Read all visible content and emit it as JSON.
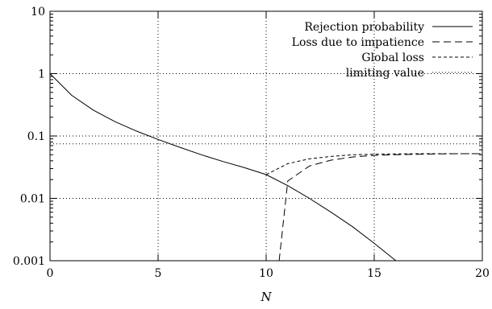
{
  "chart_data": {
    "type": "line",
    "title": "",
    "xlabel": "N",
    "ylabel": "",
    "xlim": [
      0,
      20
    ],
    "ylim": [
      0.001,
      10
    ],
    "y_scale": "log",
    "grid": true,
    "legend_position": "top-right",
    "x_ticks": [
      0,
      5,
      10,
      15,
      20
    ],
    "x_tick_labels": [
      "0",
      "5",
      "10",
      "15",
      "20"
    ],
    "y_ticks": [
      0.001,
      0.01,
      0.1,
      1,
      10
    ],
    "y_tick_labels": [
      "0.001",
      "0.01",
      "0.1",
      "1",
      "10"
    ],
    "series": [
      {
        "name": "Rejection probability",
        "style": "solid",
        "x": [
          0,
          1,
          2,
          3,
          4,
          5,
          6,
          7,
          8,
          9,
          10,
          11,
          12,
          13,
          14,
          15,
          16
        ],
        "values": [
          1.0,
          0.45,
          0.26,
          0.17,
          0.12,
          0.088,
          0.066,
          0.05,
          0.039,
          0.031,
          0.024,
          0.016,
          0.01,
          0.006,
          0.0035,
          0.0019,
          0.001
        ]
      },
      {
        "name": "Loss due to impatience",
        "style": "dashed",
        "x": [
          10.6,
          11,
          12,
          13,
          14,
          15,
          16,
          17,
          18,
          19,
          20
        ],
        "values": [
          0.001,
          0.019,
          0.033,
          0.041,
          0.046,
          0.049,
          0.05,
          0.051,
          0.0515,
          0.052,
          0.052
        ]
      },
      {
        "name": "Global loss",
        "style": "short-dashed",
        "x": [
          10,
          11,
          12,
          13,
          14,
          15,
          16,
          17,
          18,
          19,
          20
        ],
        "values": [
          0.024,
          0.036,
          0.043,
          0.047,
          0.05,
          0.051,
          0.0515,
          0.052,
          0.052,
          0.052,
          0.052
        ]
      },
      {
        "name": "limiting value",
        "style": "dotted",
        "x": [
          0,
          20
        ],
        "values": [
          0.075,
          0.075
        ]
      }
    ]
  }
}
